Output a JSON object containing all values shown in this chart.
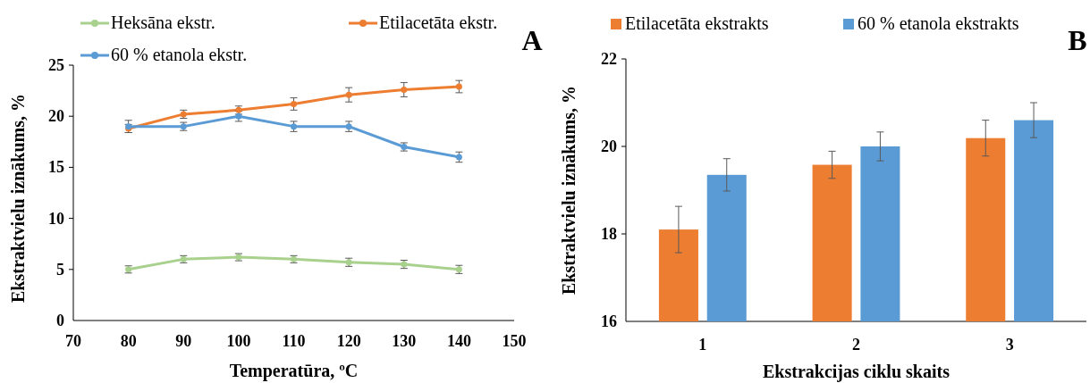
{
  "chart_data": [
    {
      "type": "line",
      "title": "A",
      "xlabel": "Temperatūra, ºC",
      "ylabel": "Ekstraktvielu  iznākums,  %",
      "x": [
        80,
        90,
        100,
        110,
        120,
        130,
        140
      ],
      "xlim": [
        70,
        150
      ],
      "xticks": [
        70,
        80,
        90,
        100,
        110,
        120,
        130,
        140,
        150
      ],
      "ylim": [
        0,
        25
      ],
      "yticks": [
        0,
        5,
        10,
        15,
        20,
        25
      ],
      "marker": "circle",
      "legend": "top",
      "series": [
        {
          "name": "Heksāna ekstr.",
          "color": "#a9d18e",
          "values": [
            5,
            6,
            6.2,
            6,
            5.7,
            5.5,
            5
          ],
          "errors": [
            0.35,
            0.35,
            0.35,
            0.35,
            0.4,
            0.4,
            0.4
          ]
        },
        {
          "name": "Etilacetāta ekstr.",
          "color": "#ed7d31",
          "values": [
            18.8,
            20.2,
            20.6,
            21.2,
            22.1,
            22.6,
            22.9
          ],
          "errors": [
            0.4,
            0.4,
            0.4,
            0.6,
            0.7,
            0.7,
            0.6
          ]
        },
        {
          "name": "60 % etanola ekstr.",
          "color": "#5b9bd5",
          "values": [
            19,
            19,
            20,
            19,
            19,
            17,
            16
          ],
          "errors": [
            0.6,
            0.4,
            0.5,
            0.5,
            0.5,
            0.4,
            0.5
          ]
        }
      ]
    },
    {
      "type": "bar",
      "title": "B",
      "xlabel": "Ekstrakcijas  ciklu  skaits",
      "ylabel": "Ekstraktvielu  iznākums,  %",
      "categories": [
        "1",
        "2",
        "3"
      ],
      "ylim": [
        16,
        22
      ],
      "yticks": [
        16,
        18,
        20,
        22
      ],
      "legend": "top",
      "series": [
        {
          "name": "Etilacetāta ekstrakts",
          "color": "#ed7d31",
          "values": [
            18.1,
            19.58,
            20.19
          ],
          "errors": [
            0.53,
            0.31,
            0.41
          ]
        },
        {
          "name": "60 % etanola ekstrakts",
          "color": "#5b9bd5",
          "values": [
            19.35,
            20.0,
            20.6
          ],
          "errors": [
            0.37,
            0.33,
            0.4
          ]
        }
      ]
    }
  ]
}
